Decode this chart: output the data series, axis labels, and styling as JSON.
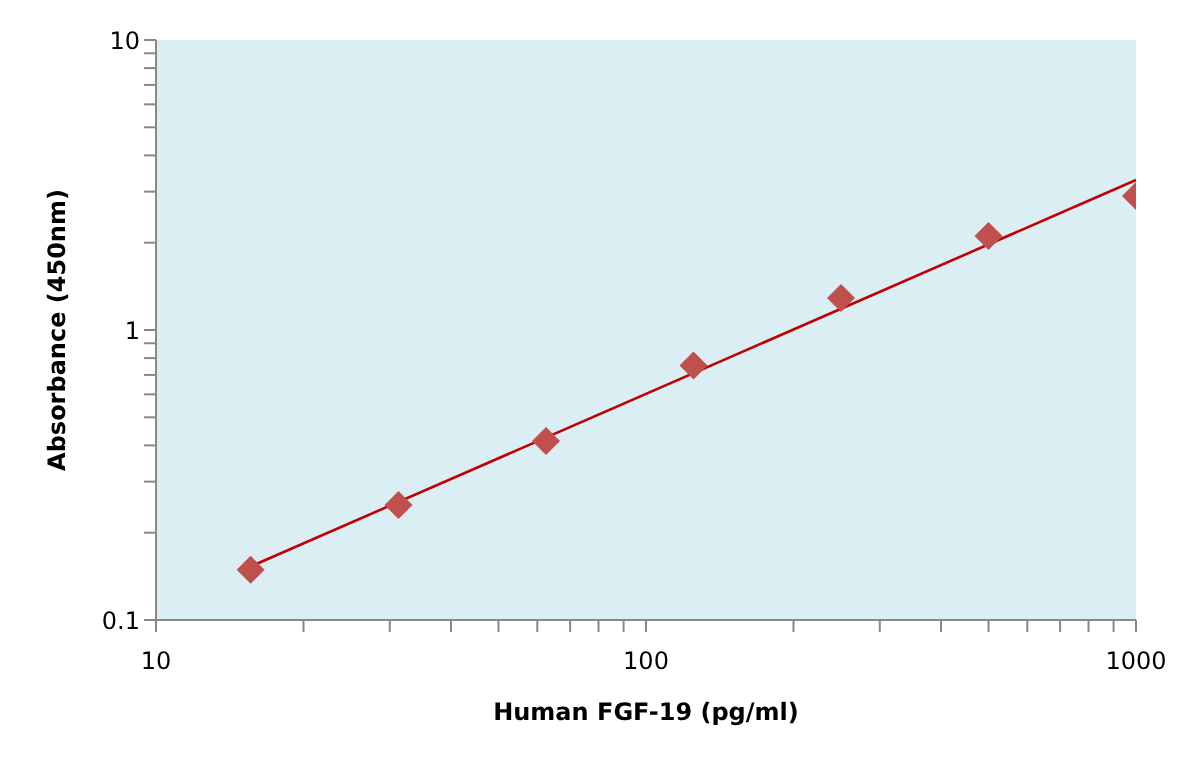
{
  "chart_data": {
    "type": "scatter",
    "xlabel": "Human FGF-19 (pg/ml)",
    "ylabel": "Absorbance (450nm)",
    "log": "xy",
    "marker": "diamond",
    "grid": false,
    "xlim": [
      10,
      1000
    ],
    "ylim": [
      0.1,
      10
    ],
    "xticks": [
      10,
      {
        "value": 20,
        "label": null
      },
      {
        "value": 30,
        "label": null
      },
      {
        "value": 40,
        "label": null
      },
      {
        "value": 50,
        "label": null
      },
      {
        "value": 60,
        "label": null
      },
      {
        "value": 70,
        "label": null
      },
      {
        "value": 80,
        "label": null
      },
      {
        "value": 90,
        "label": null
      },
      100,
      {
        "value": 200,
        "label": null
      },
      {
        "value": 300,
        "label": null
      },
      {
        "value": 400,
        "label": null
      },
      {
        "value": 500,
        "label": null
      },
      {
        "value": 600,
        "label": null
      },
      {
        "value": 700,
        "label": null
      },
      {
        "value": 800,
        "label": null
      },
      {
        "value": 900,
        "label": null
      },
      1000
    ],
    "yticks": [
      0.1,
      {
        "value": 0.2,
        "label": null
      },
      {
        "value": 0.3,
        "label": null
      },
      {
        "value": 0.4,
        "label": null
      },
      {
        "value": 0.5,
        "label": null
      },
      {
        "value": 0.6,
        "label": null
      },
      {
        "value": 0.7,
        "label": null
      },
      {
        "value": 0.8,
        "label": null
      },
      {
        "value": 0.9,
        "label": null
      },
      1,
      {
        "value": 2,
        "label": null
      },
      {
        "value": 3,
        "label": null
      },
      {
        "value": 4,
        "label": null
      },
      {
        "value": 5,
        "label": null
      },
      {
        "value": 6,
        "label": null
      },
      {
        "value": 7,
        "label": null
      },
      {
        "value": 8,
        "label": null
      },
      {
        "value": 9,
        "label": null
      },
      10
    ],
    "series": [
      {
        "color": "#c0504d",
        "x": [
          15.6,
          31.25,
          62.5,
          125,
          250,
          500,
          1000
        ],
        "values": [
          0.149,
          0.249,
          0.414,
          0.755,
          1.29,
          2.11,
          2.9
        ]
      },
      {
        "type": "line",
        "color": "#c00000",
        "marker": "none",
        "x": [
          15.6,
          1000
        ],
        "values": [
          0.153,
          3.29
        ]
      }
    ]
  }
}
